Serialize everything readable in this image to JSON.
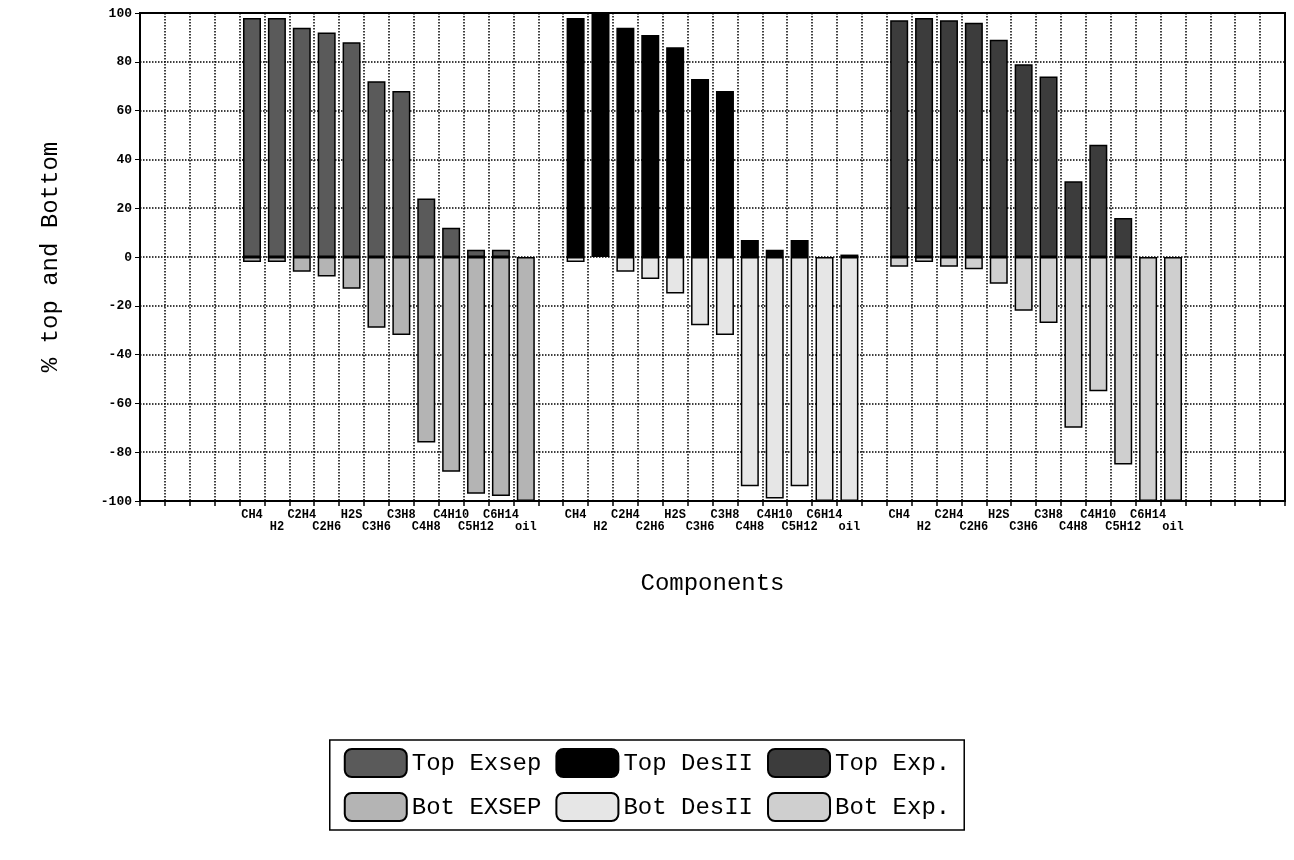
{
  "chart_data": {
    "type": "bar",
    "xlabel": "Components",
    "ylabel": "% top and Bottom",
    "categories": [
      null,
      null,
      null,
      null,
      "CH4",
      "H2",
      "C2H4",
      "C2H6",
      "H2S",
      "C3H6",
      "C3H8",
      "C4H8",
      "C4H10",
      "C5H12",
      "C6H14",
      "oil",
      null,
      "CH4",
      "H2",
      "C2H4",
      "C2H6",
      "H2S",
      "C3H6",
      "C3H8",
      "C4H8",
      "C4H10",
      "C5H12",
      "C6H14",
      "oil",
      null,
      "CH4",
      "H2",
      "C2H4",
      "C2H6",
      "H2S",
      "C3H6",
      "C3H8",
      "C4H8",
      "C4H10",
      "C5H12",
      "C6H14",
      "oil",
      null,
      null,
      null,
      null
    ],
    "series": [
      {
        "name": "Top Exsep",
        "color": "#5a5a5a",
        "values": [
          null,
          null,
          null,
          null,
          98,
          98,
          94,
          92,
          88,
          72,
          68,
          24,
          12,
          3,
          3,
          null,
          null,
          null,
          null,
          null,
          null,
          null,
          null,
          null,
          null,
          null,
          null,
          null,
          null,
          null,
          null,
          null,
          null,
          null,
          null,
          null,
          null,
          null,
          null,
          null,
          null,
          null,
          null,
          null,
          null,
          null
        ]
      },
      {
        "name": "Top DesII",
        "color": "#000000",
        "values": [
          null,
          null,
          null,
          null,
          null,
          null,
          null,
          null,
          null,
          null,
          null,
          null,
          null,
          null,
          null,
          null,
          null,
          98,
          100,
          94,
          91,
          86,
          73,
          68,
          7,
          3,
          7,
          null,
          1,
          null,
          null,
          null,
          null,
          null,
          null,
          null,
          null,
          null,
          null,
          null,
          null,
          null,
          null,
          null,
          null,
          null
        ]
      },
      {
        "name": "Top Exp.",
        "color": "#3c3c3c",
        "values": [
          null,
          null,
          null,
          null,
          null,
          null,
          null,
          null,
          null,
          null,
          null,
          null,
          null,
          null,
          null,
          null,
          null,
          null,
          null,
          null,
          null,
          null,
          null,
          null,
          null,
          null,
          null,
          null,
          null,
          null,
          97,
          98,
          97,
          96,
          89,
          79,
          74,
          31,
          46,
          16,
          null,
          null,
          null,
          null,
          null,
          null
        ]
      },
      {
        "name": "Bot EXSEP",
        "color": "#b4b4b4",
        "values": [
          null,
          null,
          null,
          null,
          -2,
          -2,
          -6,
          -8,
          -13,
          -29,
          -32,
          -76,
          -88,
          -97,
          -98,
          -100,
          null,
          null,
          null,
          null,
          null,
          null,
          null,
          null,
          null,
          null,
          null,
          null,
          null,
          null,
          null,
          null,
          null,
          null,
          null,
          null,
          null,
          null,
          null,
          null,
          null,
          null,
          null,
          null,
          null,
          null
        ]
      },
      {
        "name": "Bot DesII",
        "color": "#e6e6e6",
        "values": [
          null,
          null,
          null,
          null,
          null,
          null,
          null,
          null,
          null,
          null,
          null,
          null,
          null,
          null,
          null,
          null,
          null,
          -2,
          null,
          -6,
          -9,
          -15,
          -28,
          -32,
          -94,
          -99,
          -94,
          -100,
          -100,
          null,
          null,
          null,
          null,
          null,
          null,
          null,
          null,
          null,
          null,
          null,
          null,
          null,
          null,
          null,
          null,
          null
        ]
      },
      {
        "name": "Bot Exp.",
        "color": "#cfcfcf",
        "values": [
          null,
          null,
          null,
          null,
          null,
          null,
          null,
          null,
          null,
          null,
          null,
          null,
          null,
          null,
          null,
          null,
          null,
          null,
          null,
          null,
          null,
          null,
          null,
          null,
          null,
          null,
          null,
          null,
          null,
          null,
          -4,
          -2,
          -4,
          -5,
          -11,
          -22,
          -27,
          -70,
          -55,
          -85,
          -100,
          -100,
          null,
          null,
          null,
          null
        ]
      }
    ],
    "stacked": true,
    "ylim": [
      -100,
      100
    ],
    "yticks": [
      -100,
      -80,
      -60,
      -40,
      -20,
      0,
      20,
      40,
      60,
      80,
      100
    ],
    "grid": true,
    "legend": "bottom"
  }
}
